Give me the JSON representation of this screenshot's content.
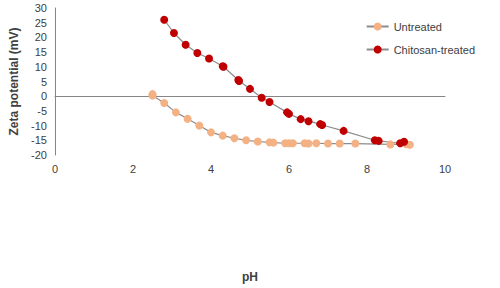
{
  "chart_data": {
    "type": "line",
    "x_label": "pH",
    "y_label": "Zeta potential (mV)",
    "xlim": [
      0,
      10
    ],
    "xticks": [
      0,
      2,
      4,
      6,
      8,
      10
    ],
    "ylim": [
      -20,
      30
    ],
    "yticks": [
      -20,
      -15,
      -10,
      -5,
      0,
      5,
      10,
      15,
      20,
      25,
      30
    ],
    "grid": false,
    "legend": "top-right",
    "series": [
      {
        "name": "Untreated",
        "color": "#f4b183",
        "marker": "circle",
        "line_style": "solid",
        "x": [
          2.5,
          2.5,
          2.8,
          3.1,
          3.4,
          3.7,
          4.0,
          4.3,
          4.6,
          4.9,
          5.2,
          5.5,
          5.6,
          5.9,
          6.0,
          6.1,
          6.4,
          6.5,
          6.7,
          7.0,
          7.3,
          7.7,
          8.6,
          9.0,
          9.1
        ],
        "values": [
          0.7,
          0.2,
          -2.3,
          -5.5,
          -7.7,
          -10,
          -12.3,
          -13.4,
          -14.3,
          -15,
          -15.4,
          -15.7,
          -15.8,
          -16,
          -16,
          -16,
          -16,
          -16.1,
          -16,
          -16.1,
          -16.1,
          -16.1,
          -16.4,
          -16.3,
          -16.5
        ]
      },
      {
        "name": "Chitosan-treated",
        "color": "#c00000",
        "marker": "circle",
        "line_style": "solid",
        "x": [
          2.8,
          3.05,
          3.35,
          3.65,
          3.95,
          4.3,
          4.32,
          4.7,
          4.72,
          5.0,
          5.3,
          5.5,
          5.95,
          6.0,
          6.3,
          6.5,
          6.8,
          6.85,
          7.4,
          8.2,
          8.3,
          8.85,
          8.95
        ],
        "values": [
          26,
          21.5,
          17.5,
          14.7,
          12.8,
          10.2,
          10,
          5.5,
          5.2,
          2.5,
          -0.5,
          -2,
          -5.5,
          -6,
          -7.8,
          -8.5,
          -9.5,
          -9.8,
          -11.8,
          -15,
          -15.2,
          -16,
          -15.5
        ]
      }
    ]
  }
}
